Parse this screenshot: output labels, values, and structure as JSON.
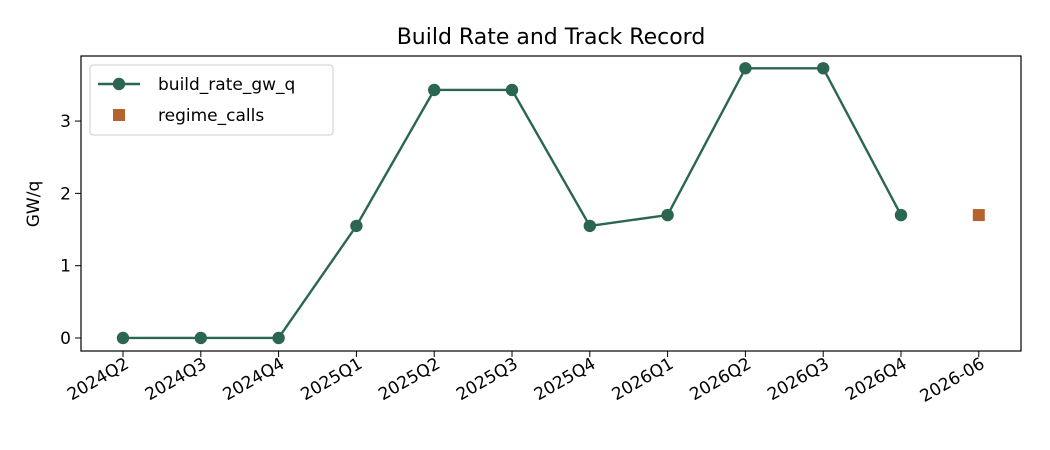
{
  "chart_data": {
    "type": "line",
    "title": "Build Rate and Track Record",
    "xlabel": "",
    "ylabel": "GW/q",
    "categories": [
      "2024Q2",
      "2024Q3",
      "2024Q4",
      "2025Q1",
      "2025Q2",
      "2025Q3",
      "2025Q4",
      "2026Q1",
      "2026Q2",
      "2026Q3",
      "2026Q4",
      "2026-06"
    ],
    "ylim": [
      -0.18,
      3.9
    ],
    "yticks": [
      0,
      1,
      2,
      3
    ],
    "grid": false,
    "legend_position": "top-left",
    "series": [
      {
        "name": "build_rate_gw_q",
        "type": "line",
        "marker": "circle",
        "color": "#2b6650",
        "values": [
          0,
          0,
          0,
          1.55,
          3.43,
          3.43,
          1.55,
          1.7,
          3.73,
          3.73,
          1.7,
          null
        ]
      },
      {
        "name": "regime_calls",
        "type": "scatter",
        "marker": "square",
        "color": "#b5632e",
        "values": [
          null,
          null,
          null,
          null,
          null,
          null,
          null,
          null,
          null,
          null,
          null,
          1.7
        ]
      }
    ]
  }
}
